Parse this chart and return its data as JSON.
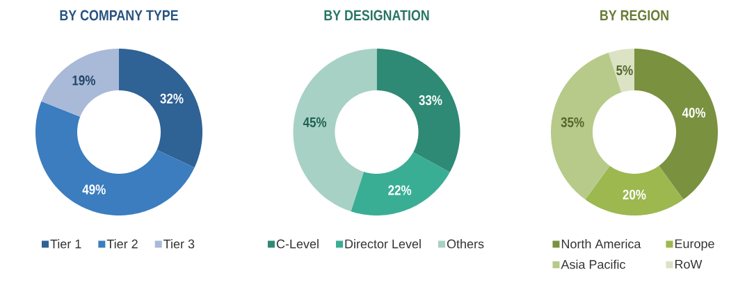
{
  "chart_data": [
    {
      "type": "donut",
      "title": "BY COMPANY TYPE",
      "categories": [
        "Tier 1",
        "Tier 2",
        "Tier 3"
      ],
      "values": [
        32,
        49,
        19
      ],
      "colors": [
        "#2f6295",
        "#3b7dbf",
        "#a9b9d8"
      ],
      "value_labels": [
        "32%",
        "49%",
        "19%"
      ],
      "legend": "bottom"
    },
    {
      "type": "donut",
      "title": "BY DESIGNATION",
      "categories": [
        "C-Level",
        "Director Level",
        "Others"
      ],
      "values": [
        33,
        22,
        45
      ],
      "colors": [
        "#2e8a74",
        "#3aae95",
        "#a8d1c5"
      ],
      "value_labels": [
        "33%",
        "22%",
        "45%"
      ],
      "legend": "bottom"
    },
    {
      "type": "donut",
      "title": "BY REGION",
      "categories": [
        "North America",
        "Europe",
        "Asia Pacific",
        "RoW"
      ],
      "values": [
        40,
        20,
        35,
        5
      ],
      "colors": [
        "#7a9140",
        "#9cb84f",
        "#b7ca89",
        "#dbe3c4"
      ],
      "value_labels": [
        "40%",
        "20%",
        "35%",
        "5%"
      ],
      "legend": "bottom"
    }
  ]
}
